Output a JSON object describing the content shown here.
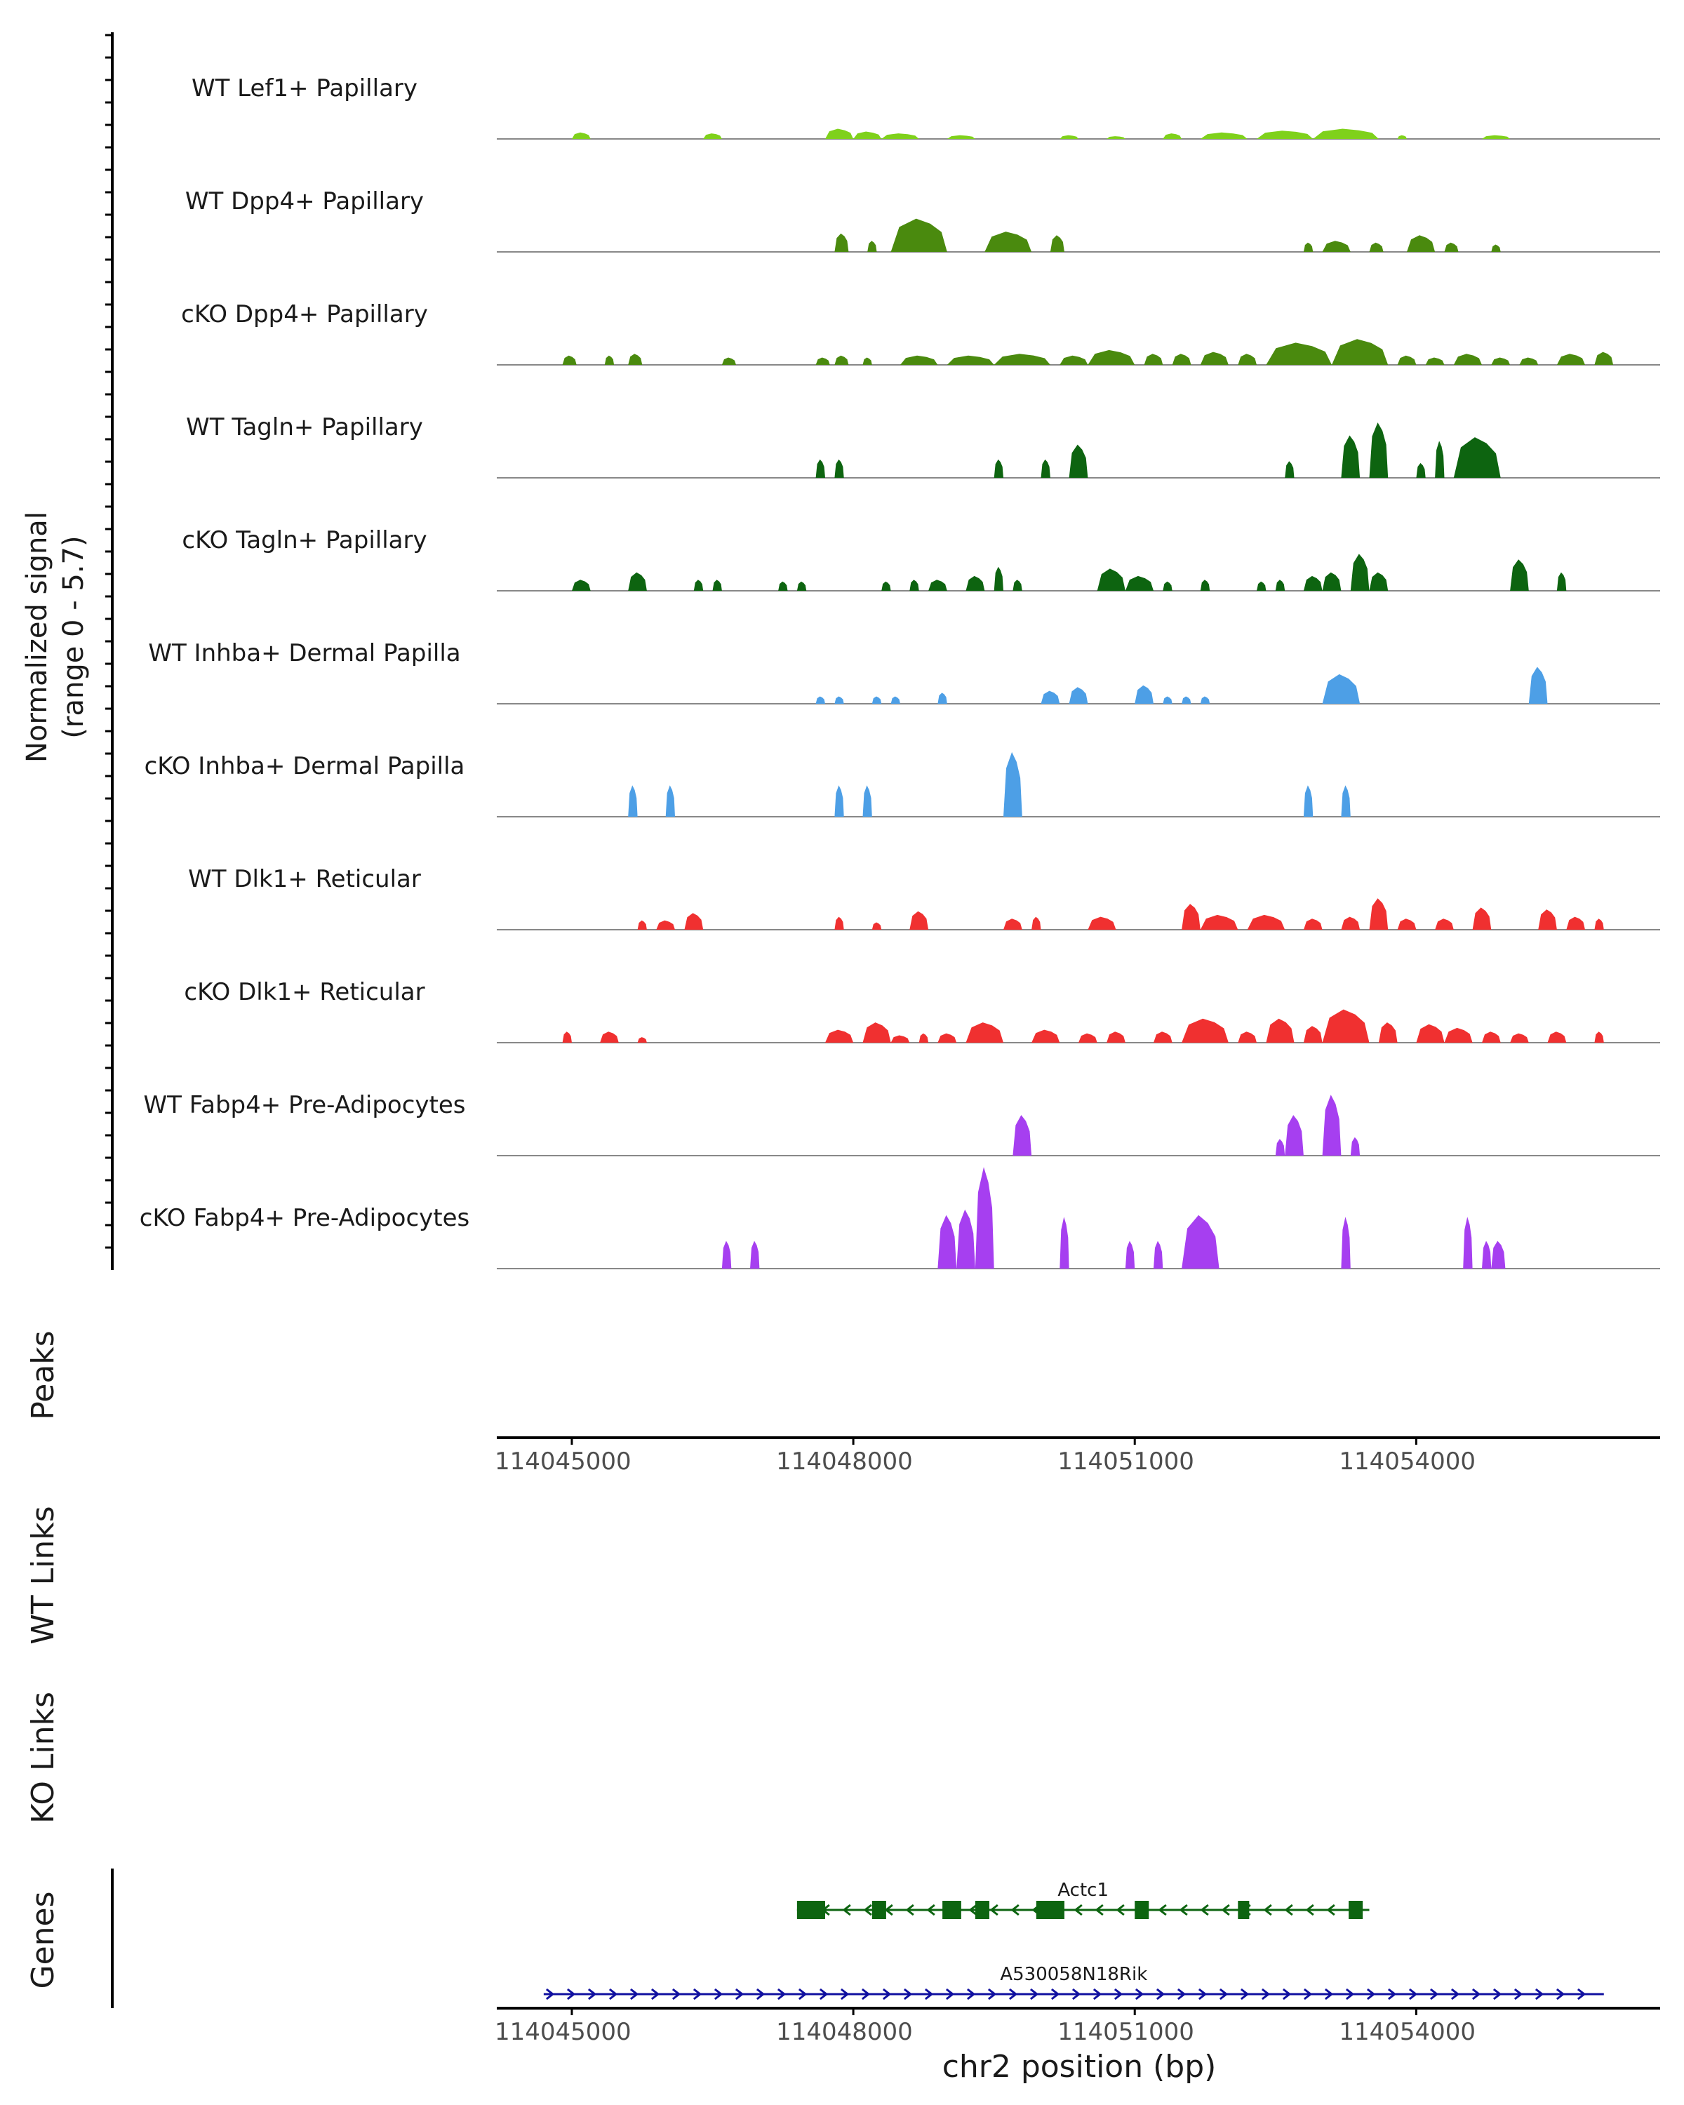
{
  "chart_data": {
    "type": "genome_coverage_plot",
    "region": {
      "chrom": "chr2",
      "start": 114044200,
      "end": 114056600
    },
    "yaxis_label_line1": "Normalized signal",
    "yaxis_label_line2": "(range 0 - 5.7)",
    "ylim": [
      0,
      5.7
    ],
    "xlabel": "chr2 position (bp)",
    "xticks": [
      {
        "value": 114045000,
        "label": "114045000"
      },
      {
        "value": 114048000,
        "label": "114048000"
      },
      {
        "value": 114051000,
        "label": "114051000"
      },
      {
        "value": 114054000,
        "label": "114054000"
      }
    ],
    "tracks": [
      {
        "name": "WT Lef1+ Papillary",
        "color": "#7fd11b",
        "peaks": [
          [
            114045000,
            114045200,
            0.35
          ],
          [
            114046400,
            114046600,
            0.3
          ],
          [
            114047700,
            114048000,
            0.55
          ],
          [
            114048000,
            114048300,
            0.4
          ],
          [
            114048300,
            114048700,
            0.3
          ],
          [
            114049000,
            114049300,
            0.2
          ],
          [
            114050200,
            114050400,
            0.2
          ],
          [
            114050700,
            114050900,
            0.15
          ],
          [
            114051300,
            114051500,
            0.3
          ],
          [
            114051700,
            114052200,
            0.35
          ],
          [
            114052300,
            114052900,
            0.45
          ],
          [
            114052900,
            114053600,
            0.55
          ],
          [
            114053800,
            114053900,
            0.2
          ],
          [
            114054700,
            114055000,
            0.2
          ]
        ]
      },
      {
        "name": "WT Dpp4+ Papillary",
        "color": "#4a8a0e",
        "peaks": [
          [
            114047800,
            114047950,
            1.0
          ],
          [
            114048150,
            114048250,
            0.6
          ],
          [
            114048400,
            114049000,
            1.8
          ],
          [
            114049400,
            114049900,
            1.1
          ],
          [
            114050100,
            114050250,
            0.9
          ],
          [
            114052800,
            114052900,
            0.5
          ],
          [
            114053000,
            114053300,
            0.6
          ],
          [
            114053500,
            114053650,
            0.5
          ],
          [
            114053900,
            114054200,
            0.9
          ],
          [
            114054300,
            114054450,
            0.5
          ],
          [
            114054800,
            114054900,
            0.4
          ]
        ]
      },
      {
        "name": "cKO Dpp4+ Papillary",
        "color": "#4a8a0e",
        "peaks": [
          [
            114044900,
            114045050,
            0.5
          ],
          [
            114045350,
            114045450,
            0.5
          ],
          [
            114045600,
            114045750,
            0.6
          ],
          [
            114046600,
            114046750,
            0.4
          ],
          [
            114047600,
            114047750,
            0.4
          ],
          [
            114047800,
            114047950,
            0.5
          ],
          [
            114048100,
            114048200,
            0.4
          ],
          [
            114048500,
            114048900,
            0.5
          ],
          [
            114049000,
            114049500,
            0.5
          ],
          [
            114049500,
            114050100,
            0.6
          ],
          [
            114050200,
            114050500,
            0.5
          ],
          [
            114050500,
            114051000,
            0.8
          ],
          [
            114051100,
            114051300,
            0.6
          ],
          [
            114051400,
            114051600,
            0.6
          ],
          [
            114051700,
            114052000,
            0.7
          ],
          [
            114052100,
            114052300,
            0.6
          ],
          [
            114052400,
            114053100,
            1.2
          ],
          [
            114053100,
            114053700,
            1.4
          ],
          [
            114053800,
            114054000,
            0.5
          ],
          [
            114054100,
            114054300,
            0.4
          ],
          [
            114054400,
            114054700,
            0.6
          ],
          [
            114054800,
            114055000,
            0.4
          ],
          [
            114055100,
            114055300,
            0.4
          ],
          [
            114055500,
            114055800,
            0.6
          ],
          [
            114055900,
            114056100,
            0.7
          ]
        ]
      },
      {
        "name": "WT Tagln+ Papillary",
        "color": "#0d6410",
        "peaks": [
          [
            114047600,
            114047700,
            1.0
          ],
          [
            114047800,
            114047900,
            1.0
          ],
          [
            114049500,
            114049600,
            1.0
          ],
          [
            114050000,
            114050100,
            1.0
          ],
          [
            114050300,
            114050500,
            1.8
          ],
          [
            114052600,
            114052700,
            0.9
          ],
          [
            114053200,
            114053400,
            2.3
          ],
          [
            114053500,
            114053700,
            3.0
          ],
          [
            114054000,
            114054100,
            0.8
          ],
          [
            114054200,
            114054300,
            2.0
          ],
          [
            114054400,
            114054900,
            2.2
          ]
        ]
      },
      {
        "name": "cKO Tagln+ Papillary",
        "color": "#0d6410",
        "peaks": [
          [
            114045000,
            114045200,
            0.6
          ],
          [
            114045600,
            114045800,
            1.0
          ],
          [
            114046300,
            114046400,
            0.6
          ],
          [
            114046500,
            114046600,
            0.6
          ],
          [
            114047200,
            114047300,
            0.5
          ],
          [
            114047400,
            114047500,
            0.5
          ],
          [
            114048300,
            114048400,
            0.5
          ],
          [
            114048600,
            114048700,
            0.6
          ],
          [
            114048800,
            114049000,
            0.6
          ],
          [
            114049200,
            114049400,
            0.8
          ],
          [
            114049500,
            114049600,
            1.3
          ],
          [
            114049700,
            114049800,
            0.6
          ],
          [
            114050600,
            114050900,
            1.2
          ],
          [
            114050900,
            114051200,
            0.8
          ],
          [
            114051300,
            114051400,
            0.5
          ],
          [
            114051700,
            114051800,
            0.6
          ],
          [
            114052300,
            114052400,
            0.5
          ],
          [
            114052500,
            114052600,
            0.6
          ],
          [
            114052800,
            114053000,
            0.8
          ],
          [
            114053000,
            114053200,
            1.0
          ],
          [
            114053300,
            114053500,
            2.0
          ],
          [
            114053500,
            114053700,
            1.0
          ],
          [
            114055000,
            114055200,
            1.7
          ],
          [
            114055500,
            114055600,
            1.0
          ]
        ]
      },
      {
        "name": "WT Inhba+ Dermal Papilla",
        "color": "#4d9fe6",
        "peaks": [
          [
            114047600,
            114047700,
            0.4
          ],
          [
            114047800,
            114047900,
            0.4
          ],
          [
            114048200,
            114048300,
            0.4
          ],
          [
            114048400,
            114048500,
            0.4
          ],
          [
            114048900,
            114049000,
            0.6
          ],
          [
            114050000,
            114050200,
            0.7
          ],
          [
            114050300,
            114050500,
            0.9
          ],
          [
            114051000,
            114051200,
            1.0
          ],
          [
            114051300,
            114051400,
            0.4
          ],
          [
            114051500,
            114051600,
            0.4
          ],
          [
            114051700,
            114051800,
            0.4
          ],
          [
            114053000,
            114053400,
            1.6
          ],
          [
            114055200,
            114055400,
            2.0
          ]
        ]
      },
      {
        "name": "cKO Inhba+ Dermal Papilla",
        "color": "#4d9fe6",
        "peaks": [
          [
            114045600,
            114045700,
            1.7
          ],
          [
            114046000,
            114046100,
            1.7
          ],
          [
            114047800,
            114047900,
            1.7
          ],
          [
            114048100,
            114048200,
            1.7
          ],
          [
            114049600,
            114049800,
            3.5
          ],
          [
            114052800,
            114052900,
            1.7
          ],
          [
            114053200,
            114053300,
            1.7
          ]
        ]
      },
      {
        "name": "WT Dlk1+ Reticular",
        "color": "#f03030",
        "peaks": [
          [
            114045700,
            114045800,
            0.5
          ],
          [
            114045900,
            114046100,
            0.5
          ],
          [
            114046200,
            114046400,
            0.9
          ],
          [
            114047800,
            114047900,
            0.7
          ],
          [
            114048200,
            114048300,
            0.4
          ],
          [
            114048600,
            114048800,
            1.0
          ],
          [
            114049600,
            114049800,
            0.6
          ],
          [
            114049900,
            114050000,
            0.7
          ],
          [
            114050500,
            114050800,
            0.7
          ],
          [
            114051500,
            114051700,
            1.4
          ],
          [
            114051700,
            114052100,
            0.8
          ],
          [
            114052200,
            114052600,
            0.8
          ],
          [
            114052800,
            114053000,
            0.6
          ],
          [
            114053200,
            114053400,
            0.7
          ],
          [
            114053500,
            114053700,
            1.7
          ],
          [
            114053800,
            114054000,
            0.6
          ],
          [
            114054200,
            114054400,
            0.6
          ],
          [
            114054600,
            114054800,
            1.2
          ],
          [
            114055300,
            114055500,
            1.1
          ],
          [
            114055600,
            114055800,
            0.7
          ],
          [
            114055900,
            114056000,
            0.6
          ]
        ]
      },
      {
        "name": "cKO Dlk1+ Reticular",
        "color": "#f03030",
        "peaks": [
          [
            114044900,
            114045000,
            0.6
          ],
          [
            114045300,
            114045500,
            0.6
          ],
          [
            114045700,
            114045800,
            0.3
          ],
          [
            114047700,
            114048000,
            0.7
          ],
          [
            114048100,
            114048400,
            1.1
          ],
          [
            114048400,
            114048600,
            0.4
          ],
          [
            114048700,
            114048800,
            0.5
          ],
          [
            114048900,
            114049100,
            0.5
          ],
          [
            114049200,
            114049600,
            1.1
          ],
          [
            114049900,
            114050200,
            0.7
          ],
          [
            114050400,
            114050600,
            0.5
          ],
          [
            114050700,
            114050900,
            0.6
          ],
          [
            114051200,
            114051400,
            0.6
          ],
          [
            114051500,
            114052000,
            1.3
          ],
          [
            114052100,
            114052300,
            0.6
          ],
          [
            114052400,
            114052700,
            1.3
          ],
          [
            114052800,
            114053000,
            0.9
          ],
          [
            114053000,
            114053500,
            1.8
          ],
          [
            114053600,
            114053800,
            1.1
          ],
          [
            114054000,
            114054300,
            1.0
          ],
          [
            114054300,
            114054600,
            0.8
          ],
          [
            114054700,
            114054900,
            0.6
          ],
          [
            114055000,
            114055200,
            0.5
          ],
          [
            114055400,
            114055600,
            0.6
          ],
          [
            114055900,
            114056000,
            0.6
          ]
        ]
      },
      {
        "name": "WT Fabp4+ Pre-Adipocytes",
        "color": "#a63ff0",
        "peaks": [
          [
            114049700,
            114049900,
            2.2
          ],
          [
            114052500,
            114052600,
            0.9
          ],
          [
            114052600,
            114052800,
            2.2
          ],
          [
            114053000,
            114053200,
            3.3
          ],
          [
            114053300,
            114053400,
            1.0
          ]
        ]
      },
      {
        "name": "cKO Fabp4+ Pre-Adipocytes",
        "color": "#a63ff0",
        "peaks": [
          [
            114046600,
            114046700,
            1.5
          ],
          [
            114046900,
            114047000,
            1.5
          ],
          [
            114048900,
            114049100,
            2.9
          ],
          [
            114049100,
            114049300,
            3.2
          ],
          [
            114049300,
            114049500,
            5.5
          ],
          [
            114050200,
            114050300,
            2.8
          ],
          [
            114050900,
            114051000,
            1.5
          ],
          [
            114051200,
            114051300,
            1.5
          ],
          [
            114051500,
            114051900,
            2.9
          ],
          [
            114053200,
            114053300,
            2.8
          ],
          [
            114054500,
            114054600,
            2.8
          ],
          [
            114054700,
            114054800,
            1.5
          ],
          [
            114054800,
            114054950,
            1.5
          ]
        ]
      }
    ],
    "side_tracks": [
      {
        "label": "Peaks"
      },
      {
        "label": "WT Links"
      },
      {
        "label": "KO Links"
      },
      {
        "label": "Genes"
      }
    ],
    "genes": [
      {
        "name": "Actc1",
        "strand": "-",
        "start": 114047400,
        "end": 114053500,
        "color": "#0d6410",
        "exons": [
          [
            114047400,
            114047700
          ],
          [
            114048200,
            114048350
          ],
          [
            114048950,
            114049150
          ],
          [
            114049300,
            114049450
          ],
          [
            114049950,
            114050250
          ],
          [
            114051000,
            114051150
          ],
          [
            114052100,
            114052220
          ],
          [
            114053280,
            114053430
          ]
        ]
      },
      {
        "name": "A530058N18Rik",
        "strand": "+",
        "start": 114044700,
        "end": 114056000,
        "color": "#1010a0",
        "exons": []
      }
    ]
  }
}
